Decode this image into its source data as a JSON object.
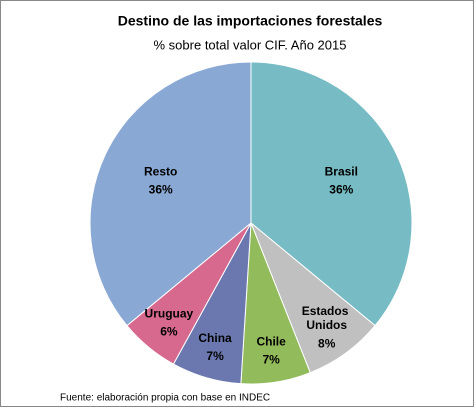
{
  "chart_data": {
    "type": "pie",
    "title": "Destino de las importaciones forestales",
    "subtitle": "% sobre total valor CIF. Año 2015",
    "source": "Fuente: elaboración propia con base en INDEC",
    "categories": [
      "Brasil",
      "Estados Unidos",
      "Chile",
      "China",
      "Uruguay",
      "Resto"
    ],
    "values": [
      36,
      8,
      7,
      7,
      6,
      36
    ],
    "value_labels": [
      "36%",
      "8%",
      "7%",
      "7%",
      "6%",
      "36%"
    ],
    "colors": [
      "#77bcc4",
      "#c0c0c0",
      "#92bb5b",
      "#6b78b0",
      "#d6698d",
      "#8aa8d4"
    ]
  }
}
